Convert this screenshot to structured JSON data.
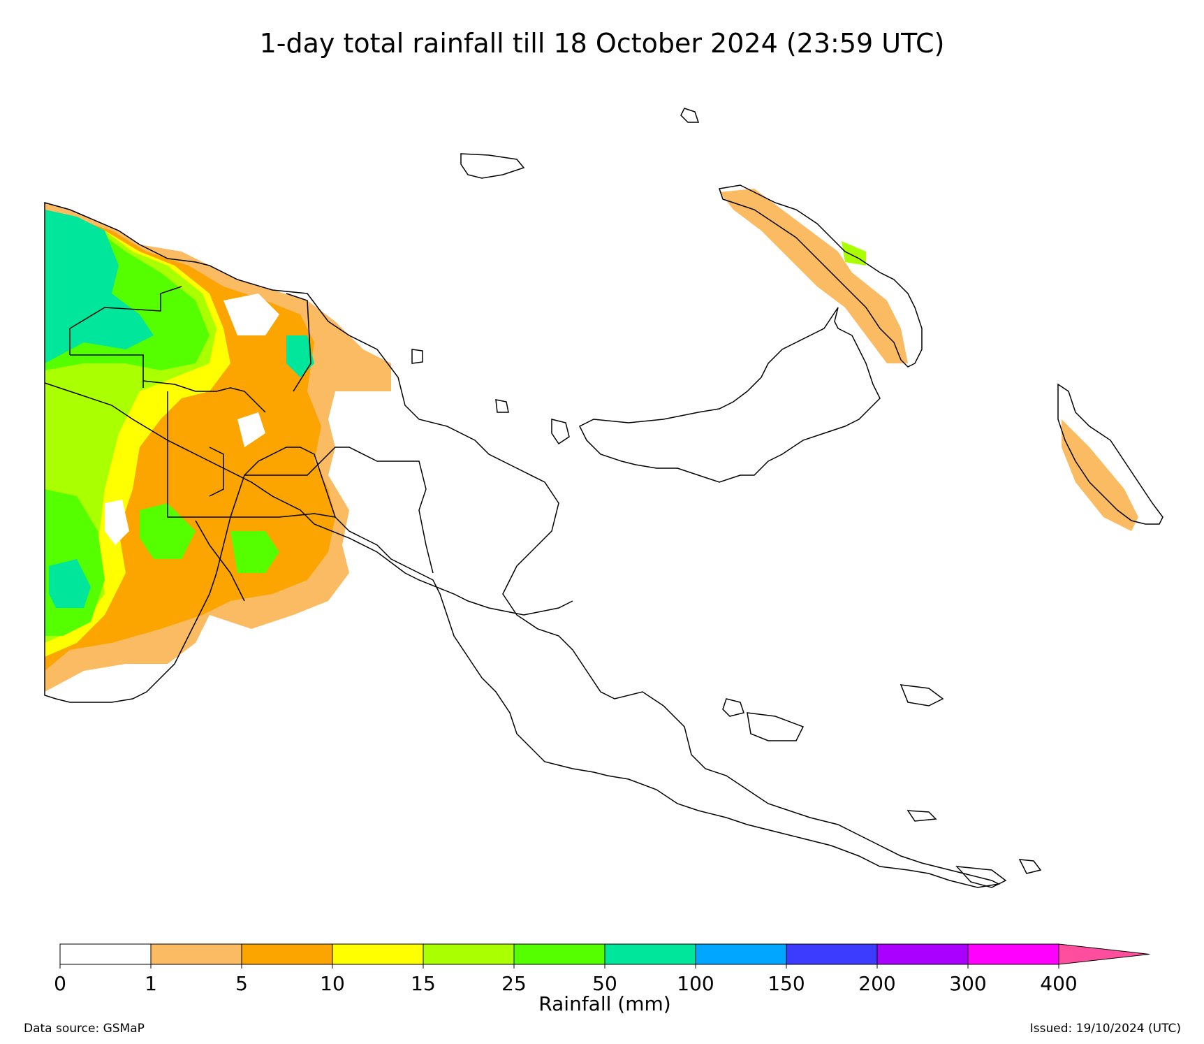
{
  "title": "1-day total rainfall till 18 October 2024 (23:59 UTC)",
  "legend": {
    "label": "Rainfall (mm)",
    "ticks": [
      "0",
      "1",
      "5",
      "10",
      "15",
      "25",
      "50",
      "100",
      "150",
      "200",
      "300",
      "400"
    ],
    "colors": [
      "#ffffff",
      "#fbbb62",
      "#fca400",
      "#ffff00",
      "#aaff00",
      "#55ff00",
      "#00e69a",
      "#00a6ff",
      "#3c3cff",
      "#aa00ff",
      "#ff00ff",
      "#ff4e9e"
    ],
    "extend": "max"
  },
  "footer": {
    "source": "Data source: GSMaP",
    "issued": "Issued: 19/10/2024 (UTC)"
  }
}
